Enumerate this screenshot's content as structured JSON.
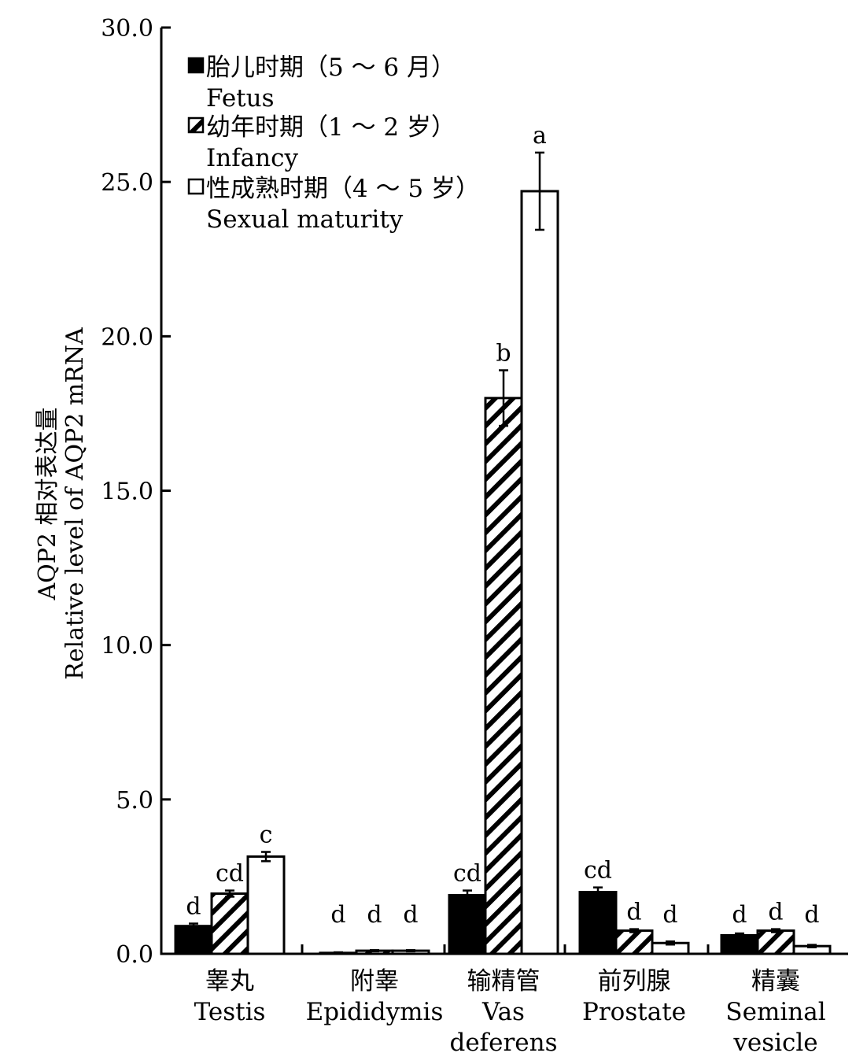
{
  "chart_data": {
    "type": "bar",
    "title": "",
    "ylabel_lines": [
      "AQP2 相对表达量",
      "Relative level of AQP2 mRNA"
    ],
    "ylim": [
      0,
      30
    ],
    "yticks": [
      "0.0",
      "5.0",
      "10.0",
      "15.0",
      "20.0",
      "25.0",
      "30.0"
    ],
    "categories": [
      {
        "zh": "睾丸",
        "en": [
          "Testis"
        ]
      },
      {
        "zh": "附睾",
        "en": [
          "Epididymis"
        ]
      },
      {
        "zh": "输精管",
        "en": [
          "Vas",
          "deferens"
        ]
      },
      {
        "zh": "前列腺",
        "en": [
          "Prostate"
        ]
      },
      {
        "zh": "精囊",
        "en": [
          "Seminal",
          "vesicle"
        ]
      }
    ],
    "series": [
      {
        "name_zh": "胎儿时期（5 ～ 6 月）",
        "name_en": "Fetus",
        "fill": "solid",
        "values": [
          0.9,
          0.03,
          1.9,
          2.0,
          0.6
        ],
        "errors": [
          0.08,
          0.02,
          0.15,
          0.15,
          0.06
        ],
        "labels": [
          "d",
          "d",
          "cd",
          "cd",
          "d"
        ]
      },
      {
        "name_zh": "幼年时期（1 ～ 2 岁）",
        "name_en": "Infancy",
        "fill": "hatched",
        "values": [
          1.95,
          0.1,
          18.0,
          0.75,
          0.75
        ],
        "errors": [
          0.1,
          0.02,
          0.9,
          0.05,
          0.05
        ],
        "labels": [
          "cd",
          "d",
          "b",
          "d",
          "d"
        ]
      },
      {
        "name_zh": "性成熟时期（4 ～ 5 岁）",
        "name_en": "Sexual maturity",
        "fill": "open",
        "values": [
          3.15,
          0.1,
          24.7,
          0.35,
          0.25
        ],
        "errors": [
          0.15,
          0.02,
          1.25,
          0.05,
          0.04
        ],
        "labels": [
          "c",
          "d",
          "a",
          "d",
          "d"
        ]
      }
    ],
    "legend_position": "top-left",
    "grid": false,
    "colors": {
      "bar_stroke": "#000000",
      "solid_fill": "#000000",
      "open_fill": "#ffffff"
    }
  }
}
